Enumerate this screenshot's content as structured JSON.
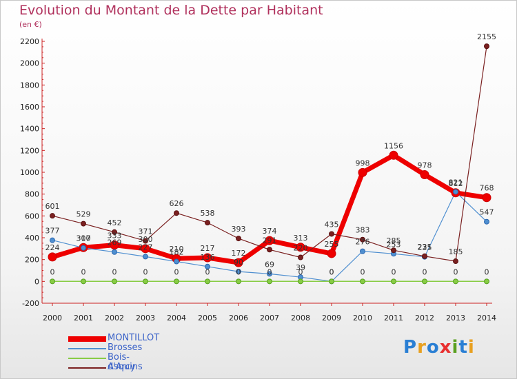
{
  "title": "Evolution du Montant de la Dette par Habitant",
  "subtitle": "(en €)",
  "logo": {
    "text": "Proxiti",
    "colors": [
      "#2a7fd4",
      "#e8a020",
      "#2a7fd4",
      "#e83030",
      "#5aa020",
      "#2a7fd4",
      "#e8a020"
    ]
  },
  "chart_data": {
    "type": "line",
    "title": "Evolution du Montant de la Dette par Habitant",
    "ylabel": "(en €)",
    "x": [
      "2000",
      "2001",
      "2002",
      "2003",
      "2004",
      "2005",
      "2006",
      "2007",
      "2008",
      "2009",
      "2010",
      "2011",
      "2012",
      "2013",
      "2014"
    ],
    "ylim": [
      -200,
      2200
    ],
    "yticks": [
      -200,
      0,
      200,
      400,
      600,
      800,
      1000,
      1200,
      1400,
      1600,
      1800,
      2000,
      2200
    ],
    "grid": false,
    "legend_position": "bottom-left",
    "series": [
      {
        "name": "MONTILLOT",
        "color": "#ee0000",
        "values": [
          224,
          310,
          333,
          300,
          210,
          217,
          172,
          374,
          313,
          255,
          998,
          1156,
          978,
          812,
          768
        ],
        "labels": [
          "224",
          "310",
          "333",
          "300",
          "210",
          "217",
          "172",
          "374",
          "313",
          "255",
          "998",
          "1156",
          "978",
          "812",
          "768"
        ]
      },
      {
        "name": "Brosses",
        "color": "#4f8fd0",
        "values": [
          377,
          307,
          269,
          227,
          182,
          136,
          90,
          69,
          39,
          0,
          276,
          253,
          225,
          821,
          547
        ],
        "labels": [
          "377",
          "307",
          "269",
          "227",
          "182",
          "136",
          "90",
          "69",
          "39",
          "0",
          "276",
          "253",
          "225",
          "821",
          "547"
        ]
      },
      {
        "name": "Bois-d'Arcy",
        "color": "#88cc44",
        "values": [
          0,
          0,
          0,
          0,
          0,
          0,
          0,
          0,
          0,
          0,
          0,
          0,
          0,
          0,
          0
        ],
        "labels": [
          "0",
          "0",
          "0",
          "0",
          "0",
          "0",
          "0",
          "0",
          "0",
          "0",
          "0",
          "0",
          "0",
          "0",
          "0"
        ]
      },
      {
        "name": "Asquins",
        "color": "#7a2020",
        "values": [
          601,
          529,
          452,
          371,
          626,
          538,
          393,
          291,
          220,
          435,
          383,
          285,
          231,
          185,
          2155
        ],
        "labels": [
          "601",
          "529",
          "452",
          "371",
          "626",
          "538",
          "393",
          "291",
          "220",
          "435",
          "383",
          "285",
          "231",
          "185",
          "2155"
        ]
      }
    ]
  }
}
